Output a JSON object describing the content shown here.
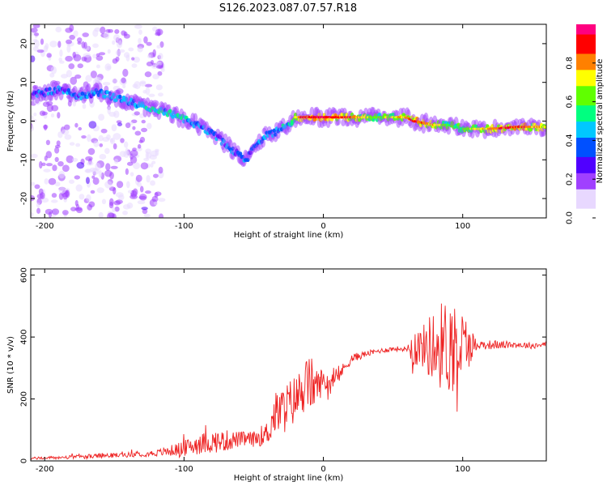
{
  "title": "S126.2023.087.07.57.R18",
  "chart_data": [
    {
      "type": "heatmap",
      "xlabel": "Height of straight line (km)",
      "ylabel": "Frequency (Hz)",
      "xlim": [
        -210,
        160
      ],
      "ylim": [
        -25,
        25
      ],
      "x_ticks": [
        -200,
        -100,
        0,
        100
      ],
      "y_ticks": [
        -20,
        -10,
        0,
        10,
        20
      ],
      "colorbar": {
        "label": "Normalized spectral amplitude",
        "range": [
          0,
          1
        ],
        "ticks": [
          0.0,
          0.2,
          0.4,
          0.6,
          0.8
        ],
        "colormap": [
          "#ffffff",
          "#e8d8ff",
          "#a040ff",
          "#5000ff",
          "#0050ff",
          "#00c8ff",
          "#00ff80",
          "#60ff00",
          "#ffff00",
          "#ff8000",
          "#ff0000",
          "#ff0080"
        ]
      },
      "ridge": {
        "x": [
          -205,
          -190,
          -175,
          -160,
          -150,
          -140,
          -130,
          -120,
          -110,
          -100,
          -90,
          -80,
          -70,
          -60,
          -55,
          -50,
          -45,
          -40,
          -35,
          -30,
          -25,
          -20,
          -15,
          -10,
          0,
          20,
          40,
          60,
          65,
          80,
          90,
          100,
          120,
          140,
          160
        ],
        "freq": [
          7,
          8,
          6.5,
          7.5,
          6,
          5,
          4,
          3,
          2,
          0.5,
          -1,
          -3,
          -6,
          -9,
          -10,
          -7,
          -5,
          -3,
          -3,
          -2,
          -1,
          1,
          1,
          1,
          1,
          1,
          1,
          1,
          0,
          -1,
          -1,
          -2,
          -2,
          -1.5,
          -1.5
        ],
        "amplitude": [
          0.25,
          0.3,
          0.3,
          0.3,
          0.35,
          0.35,
          0.35,
          0.45,
          0.5,
          0.45,
          0.3,
          0.3,
          0.3,
          0.25,
          0.25,
          0.3,
          0.35,
          0.3,
          0.35,
          0.4,
          0.45,
          0.7,
          0.9,
          0.9,
          0.95,
          0.85,
          0.6,
          0.8,
          0.9,
          0.75,
          0.6,
          0.6,
          0.8,
          0.9,
          0.7
        ]
      }
    },
    {
      "type": "line",
      "xlabel": "Height of straight line (km)",
      "ylabel": "SNR (10 * v/v)",
      "xlim": [
        -210,
        160
      ],
      "ylim": [
        0,
        620
      ],
      "x_ticks": [
        -200,
        -100,
        0,
        100
      ],
      "y_ticks": [
        0,
        200,
        400,
        600
      ],
      "series": [
        {
          "color": "#ee2222",
          "x": [
            -210,
            -180,
            -160,
            -140,
            -120,
            -100,
            -90,
            -80,
            -70,
            -60,
            -50,
            -40,
            -35,
            -30,
            -20,
            -15,
            -10,
            -5,
            0,
            5,
            10,
            15,
            20,
            30,
            40,
            50,
            60,
            65,
            70,
            80,
            90,
            95,
            100,
            110,
            120,
            130,
            140,
            150,
            160
          ],
          "y": [
            8,
            12,
            16,
            20,
            25,
            40,
            55,
            60,
            65,
            70,
            70,
            90,
            150,
            160,
            200,
            230,
            250,
            240,
            260,
            250,
            270,
            300,
            330,
            345,
            355,
            362,
            362,
            370,
            368,
            370,
            375,
            370,
            375,
            375,
            375,
            375,
            375,
            372,
            378
          ],
          "noise": [
            4,
            6,
            8,
            8,
            10,
            25,
            35,
            35,
            35,
            25,
            25,
            40,
            70,
            80,
            80,
            80,
            100,
            60,
            40,
            35,
            25,
            20,
            15,
            10,
            8,
            8,
            8,
            70,
            60,
            130,
            160,
            160,
            120,
            15,
            15,
            12,
            10,
            10,
            10
          ]
        }
      ]
    }
  ]
}
